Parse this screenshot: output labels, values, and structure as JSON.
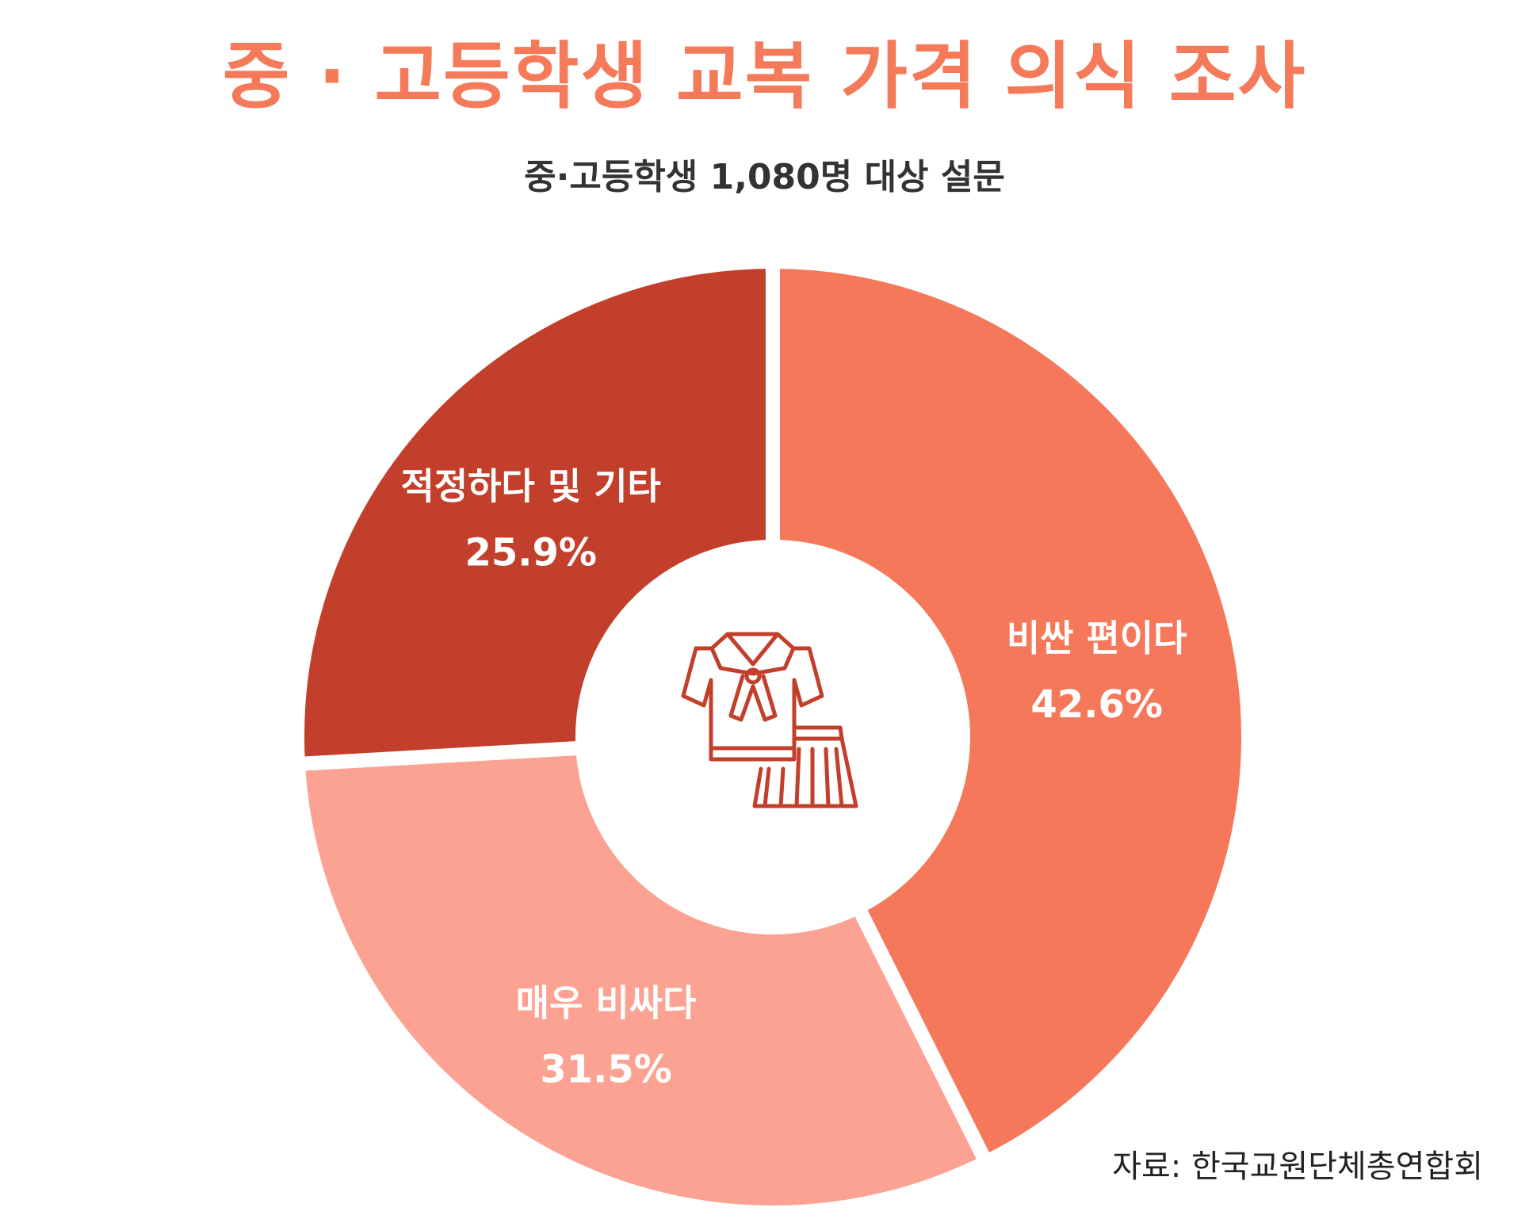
{
  "title": "중 · 고등학생 교복 가격 의식 조사",
  "subtitle": "중·고등학생 1,080명 대상 설문",
  "source": "자료: 한국교원단체총연합회",
  "chart_data": {
    "type": "pie",
    "title": "중 · 고등학생 교복 가격 의식 조사",
    "subtitle": "중·고등학생 1,080명 대상 설문",
    "unit": "%",
    "categories": [
      "비싼 편이다",
      "매우 비싸다",
      "적정하다 및 기타"
    ],
    "values": [
      42.6,
      31.5,
      25.9
    ],
    "value_labels": [
      "42.6%",
      "31.5%",
      "25.9%"
    ],
    "colors": [
      "#f5785b",
      "#fba293",
      "#c2402b"
    ],
    "donut": true,
    "start": "12 o'clock",
    "direction": "clockwise",
    "center_icon": "school-uniform-icon",
    "legend": "none"
  },
  "colors": {
    "title": "#f47a5a",
    "icon": "#c2402b"
  }
}
